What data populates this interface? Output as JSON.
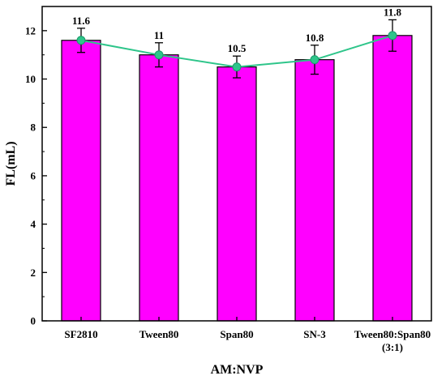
{
  "chart_data": {
    "type": "bar",
    "title": "",
    "xlabel": "AM:NVP",
    "ylabel": "FL(mL)",
    "categories": [
      [
        "SF2810"
      ],
      [
        "Tween80"
      ],
      [
        "Span80"
      ],
      [
        "SN-3"
      ],
      [
        "Tween80:Span80",
        "(3:1)"
      ]
    ],
    "values": [
      11.6,
      11,
      10.5,
      10.8,
      11.8
    ],
    "value_labels": [
      "11.6",
      "11",
      "10.5",
      "10.8",
      "11.8"
    ],
    "errors": [
      0.5,
      0.5,
      0.45,
      0.6,
      0.65
    ],
    "ylim": [
      0,
      13
    ],
    "yticks": [
      0,
      2,
      4,
      6,
      8,
      10,
      12
    ],
    "ytick_labels": [
      "0",
      "2",
      "4",
      "6",
      "8",
      "10",
      "12"
    ],
    "grid": false,
    "legend": "none",
    "overlay_line": true,
    "colors": {
      "bar": "#ff00ff",
      "bar_edge": "#000000",
      "line": "#2ec58a",
      "marker": "#2ec58a"
    }
  }
}
